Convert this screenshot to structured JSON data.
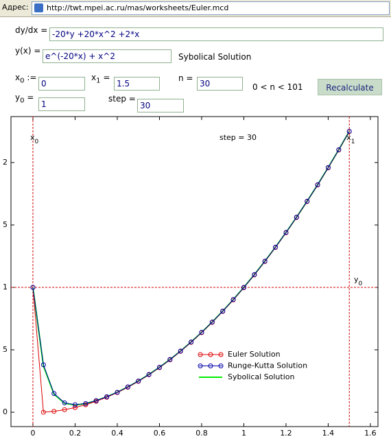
{
  "address_bar": {
    "label": "Адрес:",
    "url": "http://twt.mpei.ac.ru/mas/worksheets/Euler.mcd"
  },
  "form": {
    "dydx": {
      "label": "dy/dx =",
      "value": "-20*y +20*x^2 +2*x"
    },
    "yx": {
      "label": "y(x) =",
      "value": "e^(-20*x) + x^2",
      "note": "Sybolical Solution"
    },
    "x0": {
      "label": "x",
      "sub": "0",
      "op": ":=",
      "value": "0"
    },
    "x1": {
      "label": "x",
      "sub": "1",
      "op": "=",
      "value": "1.5"
    },
    "n": {
      "label": "n =",
      "value": "30",
      "note": "0 < n < 101"
    },
    "y0": {
      "label": "y",
      "sub": "0",
      "op": "=",
      "value": "1"
    },
    "step": {
      "label": "step =",
      "value": "30"
    },
    "button": "Recalculate"
  },
  "chart_data": {
    "type": "line",
    "annotation": "step = 30",
    "x": [
      0,
      0.05,
      0.1,
      0.15,
      0.2,
      0.25,
      0.3,
      0.35,
      0.4,
      0.45,
      0.5,
      0.55,
      0.6,
      0.65,
      0.7,
      0.75,
      0.8,
      0.85,
      0.9,
      0.95,
      1,
      1.05,
      1.1,
      1.15,
      1.2,
      1.25,
      1.3,
      1.35,
      1.4,
      1.45,
      1.5
    ],
    "series": [
      {
        "name": "Euler Solution",
        "color": "#dd0000",
        "marker": true,
        "values": [
          1,
          0,
          0.0075,
          0.02,
          0.0375,
          0.06,
          0.0875,
          0.12,
          0.1575,
          0.2,
          0.2475,
          0.3,
          0.3575,
          0.42,
          0.4875,
          0.56,
          0.6375,
          0.72,
          0.8075,
          0.9,
          0.9975,
          1.1,
          1.2075,
          1.32,
          1.4375,
          1.56,
          1.6875,
          1.82,
          1.9575,
          2.1,
          2.2475
        ]
      },
      {
        "name": "Runge-Kutta Solution",
        "color": "#0000aa",
        "marker": true,
        "values": [
          1,
          0.38,
          0.15,
          0.075,
          0.06,
          0.07,
          0.093,
          0.124,
          0.16,
          0.203,
          0.25,
          0.3025,
          0.36,
          0.4225,
          0.49,
          0.5625,
          0.64,
          0.7225,
          0.81,
          0.9025,
          1,
          1.1025,
          1.21,
          1.3225,
          1.44,
          1.5625,
          1.69,
          1.8225,
          1.96,
          2.1025,
          2.25
        ]
      },
      {
        "name": "Sybolical Solution",
        "color": "#00ee00",
        "marker": false,
        "values": [
          1,
          0.3704,
          0.1453,
          0.0723,
          0.0583,
          0.0692,
          0.0925,
          0.1234,
          0.1603,
          0.2026,
          0.25,
          0.3025,
          0.36,
          0.4225,
          0.49,
          0.5625,
          0.64,
          0.7225,
          0.81,
          0.9025,
          1,
          1.1025,
          1.21,
          1.3225,
          1.44,
          1.5625,
          1.69,
          1.8225,
          1.96,
          2.1025,
          2.25
        ]
      }
    ],
    "reference_lines": [
      {
        "axis": "x",
        "value": 0,
        "label": "x",
        "sub": "0"
      },
      {
        "axis": "x",
        "value": 1.5,
        "label": "x",
        "sub": "1"
      },
      {
        "axis": "y",
        "value": 1,
        "label": "y",
        "sub": "0"
      }
    ],
    "reference_color": "#cc0000",
    "xlim": [
      -0.104,
      1.636
    ],
    "ylim": [
      -0.115,
      2.368
    ],
    "xticks": [
      0,
      0.2,
      0.4,
      0.6,
      0.8,
      1,
      1.2,
      1.4,
      1.6
    ],
    "yticks": [
      0,
      {
        "value": 0.5,
        "label": "5"
      },
      1,
      {
        "value": 1.5,
        "label": "5"
      },
      2
    ],
    "legend": "lower right"
  }
}
